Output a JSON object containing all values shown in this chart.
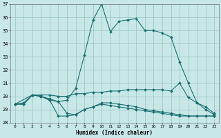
{
  "xlabel": "Humidex (Indice chaleur)",
  "background_color": "#c8e8e8",
  "grid_color": "#a0c8c8",
  "line_color": "#1a6e6e",
  "xlim": [
    -0.5,
    23.5
  ],
  "ylim": [
    28,
    37
  ],
  "yticks": [
    28,
    29,
    30,
    31,
    32,
    33,
    34,
    35,
    36,
    37
  ],
  "xticks": [
    0,
    1,
    2,
    3,
    4,
    5,
    6,
    7,
    8,
    9,
    10,
    11,
    12,
    13,
    14,
    15,
    16,
    17,
    18,
    19,
    20,
    21,
    22,
    23
  ],
  "series": [
    {
      "x": [
        0,
        2,
        3,
        4,
        5,
        6,
        7,
        8,
        9,
        10,
        11,
        12,
        13,
        14,
        15,
        16,
        17,
        18,
        19,
        20,
        21,
        22,
        23
      ],
      "y": [
        29.4,
        30.1,
        30.0,
        29.8,
        29.6,
        29.7,
        30.6,
        33.1,
        35.8,
        37.0,
        34.9,
        35.7,
        35.8,
        35.9,
        35.0,
        35.0,
        34.8,
        34.5,
        32.6,
        31.0,
        29.5,
        29.0,
        28.6
      ]
    },
    {
      "x": [
        0,
        1,
        2,
        3,
        4,
        5,
        6,
        7,
        8,
        9,
        10,
        11,
        12,
        13,
        14,
        15,
        16,
        17,
        18,
        19,
        20,
        21,
        22,
        23
      ],
      "y": [
        29.4,
        29.5,
        30.1,
        30.1,
        30.1,
        30.0,
        30.0,
        30.2,
        30.2,
        30.3,
        30.3,
        30.4,
        30.4,
        30.5,
        30.5,
        30.5,
        30.5,
        30.5,
        30.4,
        31.0,
        29.9,
        29.5,
        29.2,
        28.7
      ]
    },
    {
      "x": [
        0,
        1,
        2,
        3,
        4,
        5,
        6,
        7,
        8,
        9,
        10,
        11,
        12,
        13,
        14,
        15,
        16,
        17,
        18,
        19,
        20,
        21,
        22,
        23
      ],
      "y": [
        29.4,
        29.4,
        30.1,
        30.0,
        29.7,
        28.5,
        28.5,
        28.6,
        29.0,
        29.2,
        29.4,
        29.3,
        29.2,
        29.1,
        29.0,
        28.9,
        28.8,
        28.7,
        28.6,
        28.5,
        28.5,
        28.5,
        28.5,
        28.5
      ]
    },
    {
      "x": [
        0,
        1,
        2,
        3,
        4,
        5,
        6,
        7,
        8,
        9,
        10,
        11,
        12,
        13,
        14,
        15,
        16,
        17,
        18,
        19,
        20,
        21,
        22,
        23
      ],
      "y": [
        29.4,
        29.4,
        30.1,
        30.0,
        29.7,
        29.6,
        28.7,
        28.6,
        29.0,
        29.2,
        29.5,
        29.5,
        29.4,
        29.3,
        29.2,
        29.0,
        28.9,
        28.8,
        28.7,
        28.6,
        28.5,
        28.5,
        28.5,
        28.5
      ]
    }
  ]
}
